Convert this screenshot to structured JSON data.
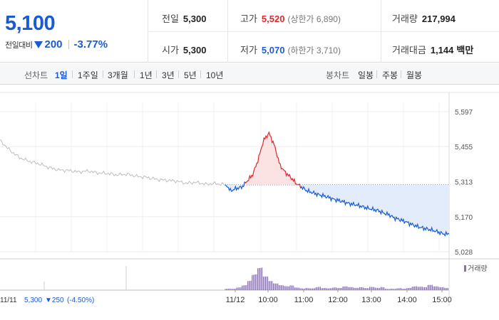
{
  "quote": {
    "price": "5,100",
    "change_label": "전일대비",
    "change_value": "200",
    "change_rate": "-3.77%",
    "prev_close_label": "전일",
    "prev_close": "5,300",
    "open_label": "시가",
    "open": "5,300",
    "high_label": "고가",
    "high": "5,520",
    "high_limit": "(상한가 6,890)",
    "low_label": "저가",
    "low": "5,070",
    "low_limit": "(하한가 3,710)",
    "volume_label": "거래량",
    "volume": "217,994",
    "value_label": "거래대금",
    "value": "1,144",
    "value_unit": "백만"
  },
  "range": {
    "line_label": "선차트",
    "line_options": [
      "1일",
      "1주일",
      "3개월",
      "1년",
      "3년",
      "5년",
      "10년"
    ],
    "active_index": 0,
    "candle_label": "봉차트",
    "candle_options": [
      "일봉",
      "주봉",
      "월봉"
    ]
  },
  "chart_data": {
    "type": "line",
    "y_ticks": [
      "5,597",
      "5,455",
      "5,313",
      "5,170",
      "5,028"
    ],
    "ylim": [
      5028,
      5597
    ],
    "reference_price": 5300,
    "time_labels": [
      "11/12",
      "10:00",
      "11:00",
      "12:00",
      "13:00",
      "14:00",
      "15:00"
    ],
    "volume_legend": "거래량",
    "previous_day": {
      "date_label": "11/11",
      "close": "5,300",
      "change": "▼250",
      "rate": "(-4.50%)",
      "values": [
        5480,
        5440,
        5410,
        5395,
        5385,
        5370,
        5360,
        5358,
        5352,
        5356,
        5348,
        5346,
        5340,
        5343,
        5334,
        5330,
        5322,
        5318,
        5315,
        5306,
        5310,
        5302,
        5305,
        5300
      ]
    },
    "today": {
      "values": [
        5300,
        5275,
        5285,
        5290,
        5315,
        5340,
        5400,
        5480,
        5510,
        5460,
        5380,
        5350,
        5330,
        5305,
        5290,
        5275,
        5268,
        5260,
        5255,
        5248,
        5240,
        5235,
        5228,
        5222,
        5218,
        5212,
        5205,
        5200,
        5195,
        5185,
        5178,
        5165,
        5158,
        5150,
        5140,
        5132,
        5125,
        5120,
        5115,
        5108,
        5100,
        5100
      ]
    },
    "volume": [
      4,
      3,
      5,
      8,
      14,
      22,
      30,
      18,
      12,
      9,
      7,
      6,
      8,
      5,
      4,
      6,
      5,
      7,
      4,
      3,
      4,
      3,
      5,
      4,
      3,
      4,
      3,
      5,
      4,
      6,
      3,
      4,
      5,
      3,
      4,
      6,
      5,
      4,
      7,
      5,
      4,
      3
    ]
  },
  "colors": {
    "rise": "#e0262b",
    "fall": "#1a5bd3",
    "prev_line": "#bdbdbd"
  }
}
